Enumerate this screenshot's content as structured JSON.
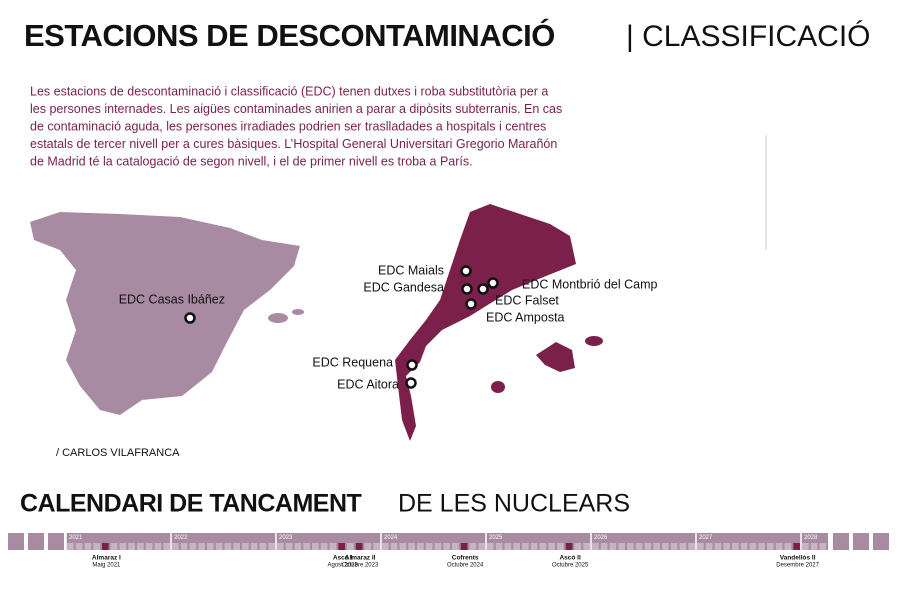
{
  "header": {
    "title_bold": "ESTACIONS DE DESCONTAMINACIÓ",
    "title_light": "| CLASSIFICACIÓ"
  },
  "description": [
    "Les estacions de descontaminació i classificació (EDC) tenen dutxes i roba substitutòria per a",
    "les persones internades. Les aigües contaminades anirien a parar a dipòsits subterranis. En cas",
    "de contaminació aguda, les persones irradiades podrien ser traslladades a hospitals i centres",
    "estatals de tercer nivell per a cures bàsiques. L’Hospital General Universitari Gregorio Marañón",
    "de Madrid té la catalogació de segon nivell, i el de primer nivell es troba a París."
  ],
  "map": {
    "stations": [
      {
        "label": "EDC Casas Ibáñez"
      },
      {
        "label": "EDC Maials"
      },
      {
        "label": "EDC Gandesa"
      },
      {
        "label": "EDC Montbrió del Camp"
      },
      {
        "label": "EDC Falset"
      },
      {
        "label": "EDC Amposta"
      },
      {
        "label": "EDC Requena"
      },
      {
        "label": "EDC Aitora"
      }
    ]
  },
  "credit": "/ CARLOS VILAFRANCA",
  "calendar": {
    "title_bold": "CALENDARI DE TANCAMENT",
    "title_light": "DE LES NUCLEARS",
    "years": [
      "2021",
      "2022",
      "2023",
      "2024",
      "2025",
      "2026",
      "2027",
      "2028"
    ],
    "events": [
      {
        "name": "Almaraz I",
        "date": "Maig 2021"
      },
      {
        "name": "Ascó I",
        "date": "Agost 2023"
      },
      {
        "name": "Almaraz II",
        "date": "Octubre 2023"
      },
      {
        "name": "Cofrents",
        "date": "Octubre 2024"
      },
      {
        "name": "Ascó II",
        "date": "Octubre 2025"
      },
      {
        "name": "Vandellòs II",
        "date": "Desembre 2027"
      }
    ]
  }
}
